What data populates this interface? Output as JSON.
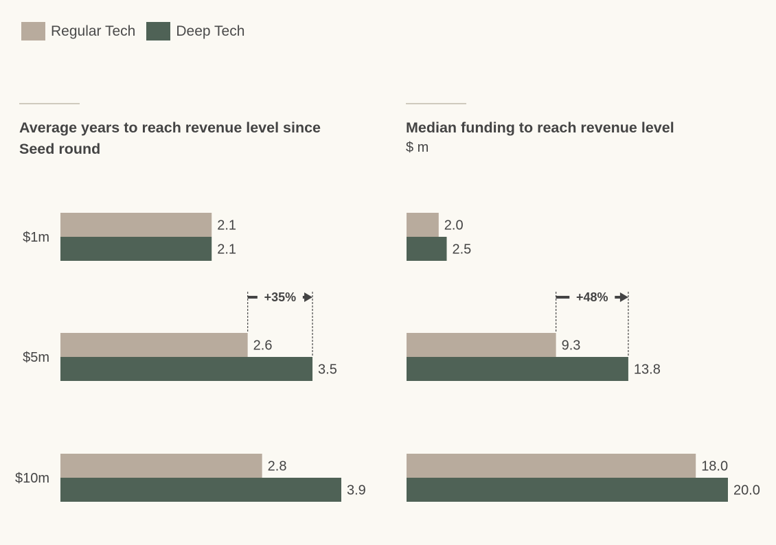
{
  "legend": [
    {
      "label": "Regular Tech",
      "color": "#b8ab9d"
    },
    {
      "label": "Deep Tech",
      "color": "#4f6256"
    }
  ],
  "chart_data": [
    {
      "type": "bar",
      "orientation": "horizontal",
      "title": "Average years to reach revenue level since Seed round",
      "title_lines": [
        "Average years to reach revenue level since",
        "Seed round"
      ],
      "subtitle": "",
      "categories": [
        "$1m",
        "$5m",
        "$10m"
      ],
      "series": [
        {
          "name": "Regular Tech",
          "values": [
            2.1,
            2.6,
            2.8
          ],
          "labels": [
            "2.1",
            "2.6",
            "2.8"
          ],
          "color": "#b8ab9d"
        },
        {
          "name": "Deep Tech",
          "values": [
            2.1,
            3.5,
            3.9
          ],
          "labels": [
            "2.1",
            "3.5",
            "3.9"
          ],
          "color": "#4f6256"
        }
      ],
      "annotation": {
        "category": "$5m",
        "text": "+35%"
      },
      "xlim": [
        0,
        3.9
      ],
      "grid": false,
      "legend_position": "top-left"
    },
    {
      "type": "bar",
      "orientation": "horizontal",
      "title": "Median funding to reach revenue level",
      "title_lines": [
        "Median funding to reach revenue level"
      ],
      "subtitle": "$ m",
      "categories": [
        "$1m",
        "$5m",
        "$10m"
      ],
      "series": [
        {
          "name": "Regular Tech",
          "values": [
            2.0,
            9.3,
            18.0
          ],
          "labels": [
            "2.0",
            "9.3",
            "18.0"
          ],
          "color": "#b8ab9d"
        },
        {
          "name": "Deep Tech",
          "values": [
            2.5,
            13.8,
            20.0
          ],
          "labels": [
            "2.5",
            "13.8",
            "20.0"
          ],
          "color": "#4f6256"
        }
      ],
      "annotation": {
        "category": "$5m",
        "text": "+48%"
      },
      "xlim": [
        0,
        20.0
      ],
      "grid": false,
      "legend_position": "top-left"
    }
  ]
}
